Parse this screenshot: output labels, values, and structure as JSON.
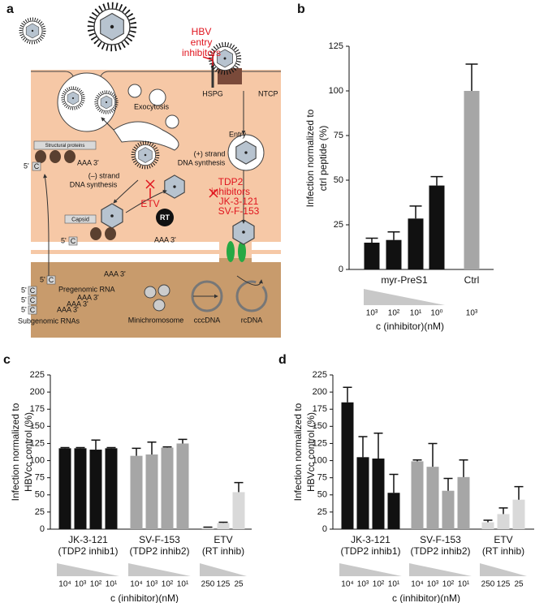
{
  "diagram": {
    "panel": "a",
    "labels": [
      "HBV",
      "entry",
      "inhibitors",
      "HSPG",
      "NTCP",
      "Exocytosis",
      "Entry",
      "Structural proteins",
      "AAA 3'",
      "5'",
      "C",
      "(+) strand",
      "DNA synthesis",
      "(–) strand",
      "DNA synthesis",
      "ETV",
      "TDP2",
      "inhibitors",
      "JK-3-121",
      "SV-F-153",
      "Capsid",
      "RT",
      "5'",
      "C",
      "AAA 3'",
      "5'",
      "C",
      "Pregenomic RNA",
      "AAA 3'",
      "5'",
      "C",
      "AAA 3'",
      "5'",
      "C",
      "AAA 3'",
      "5'",
      "C",
      "AAA 3'",
      "Subgenomic RNAs",
      "Minichromosome",
      "cccDNA",
      "rcDNA"
    ]
  },
  "chart_data": [
    {
      "type": "bar",
      "panel": "b",
      "ylabel": [
        "Infection normalized to",
        "ctrl peptide (%)"
      ],
      "xlabel": "c (inhibitor)(nM)",
      "ylim": [
        0,
        125
      ],
      "yticks": [
        0,
        25,
        50,
        75,
        100,
        125
      ],
      "groups": [
        {
          "label": [
            "myr-PreS1"
          ],
          "color": "#111111",
          "values": [
            15,
            16.5,
            28.5,
            47
          ],
          "errors": [
            2.5,
            4.5,
            7,
            5
          ],
          "doses": [
            "10³",
            "10²",
            "10¹",
            "10⁰"
          ]
        },
        {
          "label": [
            "Ctrl"
          ],
          "color": "#a6a6a6",
          "values": [
            100
          ],
          "errors": [
            15
          ],
          "doses": [
            "10³"
          ]
        }
      ]
    },
    {
      "type": "bar",
      "panel": "c",
      "ylabel": [
        "Infection normalized to",
        "HBVcc control (%)"
      ],
      "xlabel": "c (inhibitor)(nM)",
      "ylim": [
        0,
        225
      ],
      "yticks": [
        0,
        25,
        50,
        75,
        100,
        125,
        150,
        175,
        200,
        225
      ],
      "groups": [
        {
          "label": [
            "JK-3-121",
            "(TDP2 inhib1)"
          ],
          "color": "#111111",
          "values": [
            118,
            118,
            116,
            118
          ],
          "errors": [
            1,
            1,
            14,
            1
          ],
          "doses": [
            "10⁴",
            "10³",
            "10²",
            "10¹"
          ]
        },
        {
          "label": [
            "SV-F-153",
            "(TDP2 inhib2)"
          ],
          "color": "#a6a6a6",
          "values": [
            107,
            109,
            119,
            125
          ],
          "errors": [
            11,
            18,
            1,
            6
          ],
          "doses": [
            "10⁴",
            "10³",
            "10²",
            "10¹"
          ]
        },
        {
          "label": [
            "ETV",
            "(RT inhib)"
          ],
          "color": "#d9d9d9",
          "values": [
            2,
            9,
            54
          ],
          "errors": [
            1,
            1,
            14
          ],
          "doses": [
            "250",
            "125",
            "25"
          ]
        }
      ]
    },
    {
      "type": "bar",
      "panel": "d",
      "ylabel": [
        "Infection normalized to",
        "HBVcc control (%)"
      ],
      "xlabel": "c (inhibitor)(nM)",
      "ylim": [
        0,
        225
      ],
      "yticks": [
        0,
        25,
        50,
        75,
        100,
        125,
        150,
        175,
        200,
        225
      ],
      "groups": [
        {
          "label": [
            "JK-3-121",
            "(TDP2 inhib1)"
          ],
          "color": "#111111",
          "values": [
            185,
            105,
            103,
            53
          ],
          "errors": [
            22,
            30,
            37,
            27
          ],
          "doses": [
            "10⁴",
            "10³",
            "10²",
            "10¹"
          ]
        },
        {
          "label": [
            "SV-F-153",
            "(TDP2 inhib2)"
          ],
          "color": "#a6a6a6",
          "values": [
            99,
            91,
            56,
            76
          ],
          "errors": [
            2,
            34,
            18,
            25
          ],
          "doses": [
            "10⁴",
            "10³",
            "10²",
            "10¹"
          ]
        },
        {
          "label": [
            "ETV",
            "(RT inhib)"
          ],
          "color": "#d9d9d9",
          "values": [
            10,
            22,
            43
          ],
          "errors": [
            3,
            9,
            19
          ],
          "doses": [
            "250",
            "125",
            "25"
          ]
        }
      ]
    }
  ]
}
